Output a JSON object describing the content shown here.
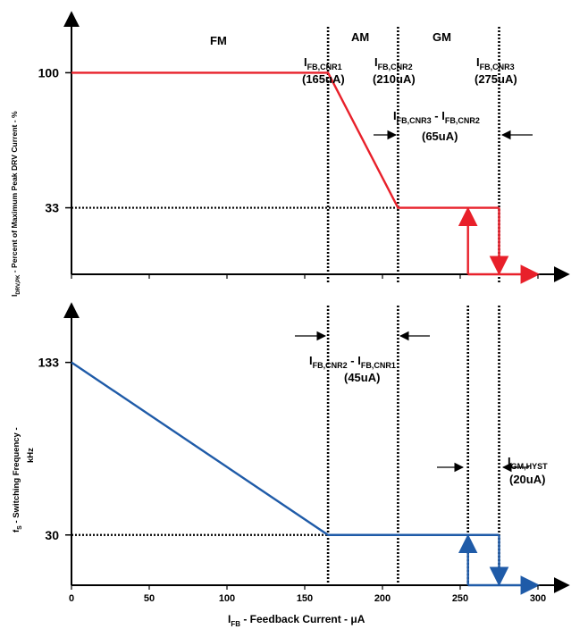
{
  "colors": {
    "top_series": "#e8202a",
    "bottom_series": "#1f5ba8",
    "axis": "#000000"
  },
  "chart_data": [
    {
      "type": "line",
      "panel": "top",
      "ylabel_parts": {
        "main": "I",
        "sub": "DRV,PK",
        "rest": " - Percent of Maximum Peak DRV Current - %"
      },
      "yticks": [
        100,
        33
      ],
      "ylim": [
        0,
        125
      ],
      "xlim": [
        0,
        300
      ],
      "regions": [
        "FM",
        "AM",
        "GM"
      ],
      "thresholds": [
        {
          "name_main": "I",
          "name_sub": "FB,CNR1",
          "value_label": "(165uA)",
          "x": 165
        },
        {
          "name_main": "I",
          "name_sub": "FB,CNR2",
          "value_label": "(210uA)",
          "x": 210
        },
        {
          "name_main": "I",
          "name_sub": "FB,CNR3",
          "value_label": "(275uA)",
          "x": 275
        }
      ],
      "delta_label": {
        "a_main": "I",
        "a_sub": "FB,CNR3",
        "sep": " - ",
        "b_main": "I",
        "b_sub": "FB,CNR2",
        "value": "(65uA)"
      },
      "series": [
        {
          "x": [
            0,
            165,
            210,
            275,
            275,
            300
          ],
          "y": [
            100,
            100,
            33,
            33,
            0,
            0
          ]
        }
      ],
      "hysteresis_up": {
        "x": 255,
        "y_from": 0,
        "y_to": 33
      }
    },
    {
      "type": "line",
      "panel": "bottom",
      "ylabel_parts": {
        "main": "f",
        "sub": "S",
        "rest": " - Switching Frequency -",
        "line2": "kHz"
      },
      "yticks": [
        133,
        30
      ],
      "ylim": [
        0,
        160
      ],
      "xlim": [
        0,
        300
      ],
      "xticks": [
        0,
        50,
        100,
        150,
        200,
        250,
        300
      ],
      "xlabel_parts": {
        "main": "I",
        "sub": "FB",
        "rest": " - Feedback Current - ",
        "unit": "μA"
      },
      "delta_label": {
        "a_main": "I",
        "a_sub": "FB,CNR2",
        "sep": " - ",
        "b_main": "I",
        "b_sub": "FB,CNR1",
        "value": "(45uA)"
      },
      "hyst_label": {
        "main": "I",
        "sub": "GM,HYST",
        "value": "(20uA)"
      },
      "series": [
        {
          "x": [
            0,
            165,
            275,
            275,
            300
          ],
          "y": [
            133,
            30,
            30,
            0,
            0
          ]
        }
      ],
      "hysteresis_up": {
        "x": 255,
        "y_from": 0,
        "y_to": 30
      }
    }
  ]
}
